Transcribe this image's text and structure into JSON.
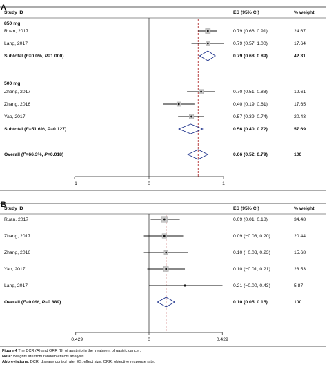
{
  "chart_data": [
    {
      "type": "forest",
      "panel_label": "A",
      "header": {
        "study": "Study ID",
        "es": "ES (95% CI)",
        "weight": "% weight"
      },
      "xaxis": {
        "ticks": [
          -1,
          0,
          1
        ],
        "tick_labels": [
          "−1",
          "0",
          "1"
        ],
        "range": [
          -1.95,
          1.95
        ]
      },
      "reference_line": 0.66,
      "rows": [
        {
          "kind": "group",
          "label": "850 mg"
        },
        {
          "kind": "study",
          "label": "Ruan, 2017",
          "es": 0.79,
          "lo": 0.66,
          "hi": 0.91,
          "es_text": "0.79 (0.66, 0.91)",
          "weight_text": "24.67"
        },
        {
          "kind": "study",
          "label": "Lang, 2017",
          "es": 0.79,
          "lo": 0.57,
          "hi": 1.0,
          "es_text": "0.79 (0.57, 1.00)",
          "weight_text": "17.64"
        },
        {
          "kind": "subtotal",
          "label": "Subtotal (I²=0.0%, P=1.000)",
          "es": 0.79,
          "lo": 0.68,
          "hi": 0.89,
          "es_text": "0.79 (0.68, 0.89)",
          "weight_text": "42.31"
        },
        {
          "kind": "group",
          "label": "500 mg"
        },
        {
          "kind": "study",
          "label": "Zhang, 2017",
          "es": 0.7,
          "lo": 0.51,
          "hi": 0.88,
          "es_text": "0.70 (0.51, 0.88)",
          "weight_text": "19.61"
        },
        {
          "kind": "study",
          "label": "Zhang, 2016",
          "es": 0.4,
          "lo": 0.19,
          "hi": 0.61,
          "es_text": "0.40 (0.19, 0.61)",
          "weight_text": "17.65"
        },
        {
          "kind": "study",
          "label": "Yao, 2017",
          "es": 0.57,
          "lo": 0.39,
          "hi": 0.74,
          "es_text": "0.57 (0.39, 0.74)",
          "weight_text": "20.43"
        },
        {
          "kind": "subtotal",
          "label": "Subtotal (I²=51.6%, P=0.127)",
          "es": 0.56,
          "lo": 0.4,
          "hi": 0.72,
          "es_text": "0.56 (0.40, 0.72)",
          "weight_text": "57.69"
        },
        {
          "kind": "overall",
          "label": "Overall (I²=66.3%, P=0.018)",
          "es": 0.66,
          "lo": 0.52,
          "hi": 0.79,
          "es_text": "0.66 (0.52, 0.79)",
          "weight_text": "100"
        }
      ]
    },
    {
      "type": "forest",
      "panel_label": "B",
      "header": {
        "study": "Study ID",
        "es": "ES (95% CI)",
        "weight": "% weight"
      },
      "xaxis": {
        "ticks": [
          -0.429,
          0,
          0.429
        ],
        "tick_labels": [
          "−0.429",
          "0",
          "0.429"
        ],
        "range": [
          -0.81,
          0.81
        ]
      },
      "reference_line": 0.1,
      "rows": [
        {
          "kind": "study",
          "label": "Ruan, 2017",
          "es": 0.09,
          "lo": 0.01,
          "hi": 0.18,
          "es_text": "0.09 (0.01, 0.18)",
          "weight_text": "34.48"
        },
        {
          "kind": "study",
          "label": "Zhang, 2017",
          "es": 0.09,
          "lo": -0.03,
          "hi": 0.2,
          "es_text": "0.09 (−0.03, 0.20)",
          "weight_text": "20.44"
        },
        {
          "kind": "study",
          "label": "Zhang, 2016",
          "es": 0.1,
          "lo": -0.03,
          "hi": 0.23,
          "es_text": "0.10 (−0.03, 0.23)",
          "weight_text": "15.68"
        },
        {
          "kind": "study",
          "label": "Yao, 2017",
          "es": 0.1,
          "lo": -0.01,
          "hi": 0.21,
          "es_text": "0.10 (−0.01, 0.21)",
          "weight_text": "23.53"
        },
        {
          "kind": "study",
          "label": "Lang, 2017",
          "es": 0.21,
          "lo": -0.0,
          "hi": 0.43,
          "es_text": "0.21 (−0.00, 0.43)",
          "weight_text": "5.87"
        },
        {
          "kind": "overall",
          "label": "Overall (I²=0.0%, P=0.889)",
          "es": 0.1,
          "lo": 0.05,
          "hi": 0.15,
          "es_text": "0.10 (0.05, 0.15)",
          "weight_text": "100"
        }
      ]
    }
  ],
  "caption": {
    "figure_label": "Figure 4",
    "figure_text": "The DCR (A) and ORR (B) of apatinib in the treatment of gastric cancer.",
    "note_label": "Note:",
    "note_text": "Weights are from random effects analysis.",
    "abbr_label": "Abbreviations:",
    "abbr_text": "DCR, disease control rate; ES, effect size; ORR, objective response rate."
  }
}
